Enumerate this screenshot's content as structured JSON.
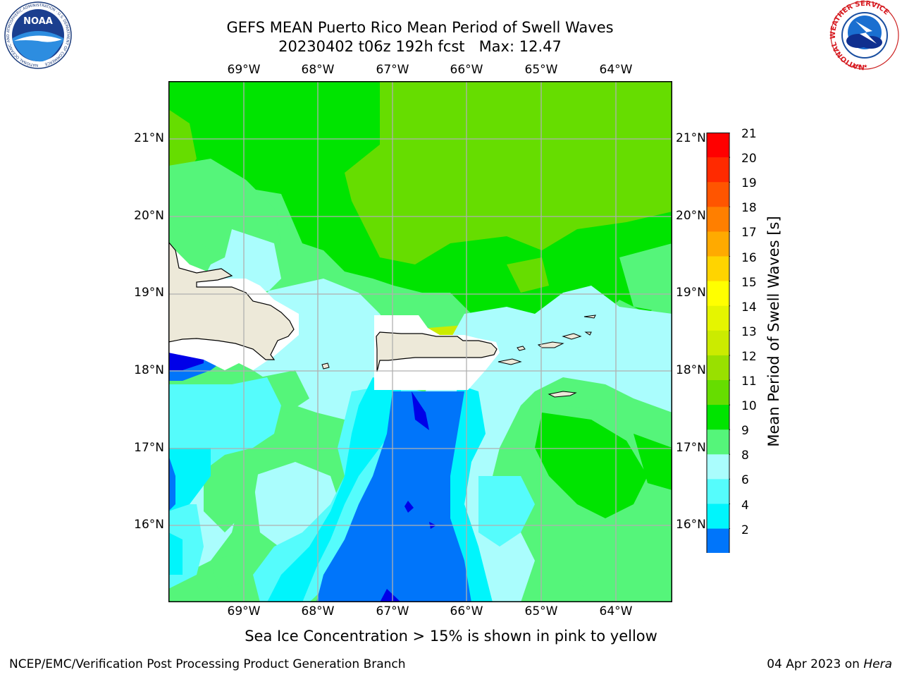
{
  "title": {
    "line1": "GEFS MEAN Puerto Rico Mean Period of Swell Waves",
    "line2": "20230402 t06z 192h fcst   Max: 12.47"
  },
  "map": {
    "lon_ticks": [
      "69°W",
      "68°W",
      "67°W",
      "66°W",
      "65°W",
      "64°W"
    ],
    "lat_ticks": [
      "21°N",
      "20°N",
      "19°N",
      "18°N",
      "17°N",
      "16°N"
    ],
    "colors": {
      "land": "#ede9d9",
      "nodata": "#ffffff",
      "gridline": "#b0b0b0"
    }
  },
  "colorbar": {
    "title": "Mean Period of Swell Waves [s]",
    "labels": [
      "21",
      "20",
      "19",
      "18",
      "17",
      "16",
      "15",
      "14",
      "13",
      "12",
      "11",
      "10",
      "9",
      "8",
      "6",
      "4",
      "2"
    ],
    "colors": [
      "#ff0000",
      "#ff2a00",
      "#ff5500",
      "#ff7f00",
      "#ffaa00",
      "#ffd400",
      "#ffff00",
      "#e5f500",
      "#cbeb00",
      "#99e000",
      "#66dd00",
      "#00e400",
      "#55f57a",
      "#aafdfd",
      "#55fcfc",
      "#00f5fc",
      "#0075fa"
    ],
    "extend_color": "#0000e8"
  },
  "logos": {
    "noaa": "NOAA",
    "noaa_ring": "NATIONAL OCEANIC AND ATMOSPHERIC ADMINISTRATION · U.S. DEPARTMENT OF COMMERCE",
    "nws_ring": "NATIONAL WEATHER SERVICE"
  },
  "footnote": "Sea Ice Concentration > 15% is shown in pink to yellow",
  "footer": {
    "left": "NCEP/EMC/Verification Post Processing Product Generation Branch",
    "right_prefix": "04 Apr 2023 on",
    "right_machine": "Hera"
  }
}
